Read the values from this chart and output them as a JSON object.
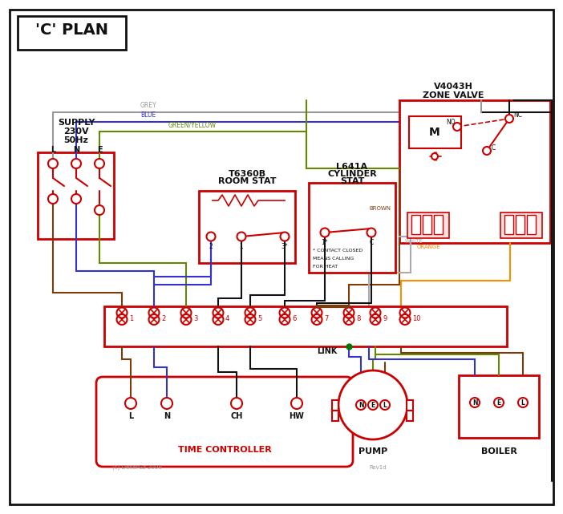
{
  "bg": "#ffffff",
  "RED": "#cc0000",
  "BLACK": "#111111",
  "GREY": "#999999",
  "BLUE": "#3333cc",
  "GREEN": "#007700",
  "BROWN": "#7B3B0B",
  "ORANGE": "#FF8C00",
  "WHITE_W": "#aaaaaa",
  "GY": "#668800",
  "title": "'C' PLAN",
  "zone_valve": [
    "V4043H",
    "ZONE VALVE"
  ],
  "room_stat": [
    "T6360B",
    "ROOM STAT"
  ],
  "cyl_stat": [
    "L641A",
    "CYLINDER",
    "STAT"
  ],
  "tc_label": "TIME CONTROLLER",
  "pump_label": "PUMP",
  "boiler_label": "BOILER",
  "terminals": [
    "1",
    "2",
    "3",
    "4",
    "5",
    "6",
    "7",
    "8",
    "9",
    "10"
  ],
  "link_label": "LINK",
  "note": [
    "* CONTACT CLOSED",
    "MEANS CALLING",
    "FOR HEAT"
  ],
  "supply_lines": [
    "SUPPLY",
    "230V",
    "50Hz"
  ],
  "lne": [
    "L",
    "N",
    "E"
  ],
  "copyright": "(c) DenerGz 2009",
  "rev": "Rev1d"
}
